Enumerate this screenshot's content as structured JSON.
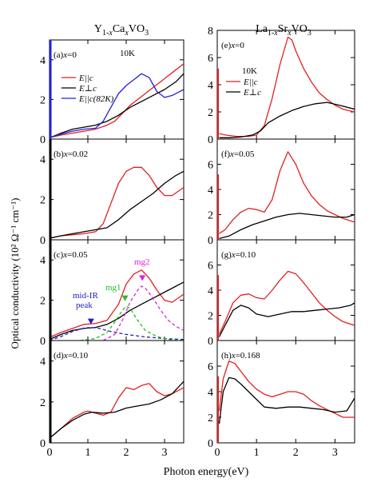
{
  "figure": {
    "ylabel": "Optical conductivity (10² Ω⁻¹ cm⁻¹)",
    "xlabel": "Photon energy(eV)",
    "columns": [
      {
        "title_pre": "Y",
        "title_sub1": "1-",
        "title_subx": "x",
        "title_mid": "Ca",
        "title_sub2": "x",
        "title_post": "VO",
        "title_sub3": "3"
      },
      {
        "title_pre": "La",
        "title_sub1": "1-",
        "title_subx": "x",
        "title_mid": "Sr",
        "title_sub2": "x",
        "title_post": "VO",
        "title_sub3": "3"
      }
    ],
    "legend_E_parallel": "E||c",
    "legend_E_perp": "E⊥c",
    "legend_E_parallel_82K": "E||c(82K)",
    "temperature_label": "10K",
    "annotations": {
      "midir_line1": "mid-IR",
      "midir_line2": "peak",
      "mg1": "mg1",
      "mg2": "mg2"
    }
  },
  "chart_data": [
    {
      "type": "line",
      "panel": "a",
      "label_letter": "(a)",
      "label_x": "x",
      "label_rest": "=0",
      "xlim": [
        0,
        3.5
      ],
      "ylim": [
        0,
        5
      ],
      "xticks": [
        0,
        1,
        2,
        3
      ],
      "yticks": [
        0,
        2,
        4
      ],
      "series": [
        {
          "name": "E||c",
          "color": "#e02020",
          "x": [
            0.05,
            0.3,
            0.6,
            0.9,
            1.2,
            1.5,
            1.7,
            1.9,
            2.1,
            2.3,
            2.5,
            2.7,
            2.9,
            3.1,
            3.3,
            3.5
          ],
          "y": [
            0.1,
            0.2,
            0.3,
            0.4,
            0.5,
            0.7,
            0.9,
            1.3,
            1.7,
            2.0,
            2.3,
            2.6,
            2.9,
            3.2,
            3.5,
            3.8
          ]
        },
        {
          "name": "E⊥c",
          "color": "#000000",
          "x": [
            0.05,
            0.3,
            0.6,
            0.9,
            1.2,
            1.5,
            1.8,
            2.1,
            2.4,
            2.7,
            3.0,
            3.3,
            3.5
          ],
          "y": [
            0.1,
            0.3,
            0.5,
            0.6,
            0.7,
            0.9,
            1.2,
            1.6,
            1.9,
            2.2,
            2.5,
            2.9,
            3.3
          ]
        },
        {
          "name": "E||c(82K)",
          "color": "#2020e0",
          "x": [
            0.05,
            0.3,
            0.6,
            0.9,
            1.2,
            1.4,
            1.6,
            1.8,
            2.0,
            2.2,
            2.4,
            2.6,
            2.8,
            3.0,
            3.2,
            3.5
          ],
          "y": [
            0.1,
            0.25,
            0.4,
            0.5,
            0.55,
            0.9,
            1.6,
            2.3,
            2.7,
            3.0,
            3.3,
            3.1,
            2.4,
            2.1,
            2.2,
            2.5
          ]
        }
      ]
    },
    {
      "type": "line",
      "panel": "b",
      "label_letter": "(b)",
      "label_x": "x",
      "label_rest": "=0.02",
      "xlim": [
        0,
        3.5
      ],
      "ylim": [
        0,
        5
      ],
      "xticks": [
        0,
        1,
        2,
        3
      ],
      "yticks": [
        0,
        2,
        4
      ],
      "series": [
        {
          "name": "E||c",
          "color": "#e02020",
          "x": [
            0.05,
            0.3,
            0.6,
            0.9,
            1.2,
            1.4,
            1.6,
            1.8,
            2.0,
            2.2,
            2.4,
            2.6,
            2.8,
            3.0,
            3.2,
            3.5
          ],
          "y": [
            0.1,
            0.2,
            0.25,
            0.3,
            0.4,
            0.8,
            1.8,
            2.8,
            3.4,
            3.6,
            3.6,
            3.2,
            2.6,
            2.2,
            2.2,
            2.6
          ]
        },
        {
          "name": "E⊥c",
          "color": "#000000",
          "x": [
            0.05,
            0.3,
            0.6,
            0.9,
            1.2,
            1.5,
            1.8,
            2.1,
            2.4,
            2.7,
            3.0,
            3.3,
            3.5
          ],
          "y": [
            0.1,
            0.2,
            0.3,
            0.4,
            0.5,
            0.6,
            1.0,
            1.5,
            1.9,
            2.3,
            2.8,
            3.2,
            3.4
          ]
        }
      ]
    },
    {
      "type": "line",
      "panel": "c",
      "label_letter": "(c)",
      "label_x": "x",
      "label_rest": "=0.05",
      "xlim": [
        0,
        3.5
      ],
      "ylim": [
        0,
        5
      ],
      "xticks": [
        0,
        1,
        2,
        3
      ],
      "yticks": [
        0,
        2,
        4
      ],
      "series": [
        {
          "name": "E||c",
          "color": "#e02020",
          "x": [
            0.05,
            0.3,
            0.6,
            0.9,
            1.2,
            1.5,
            1.8,
            2.0,
            2.2,
            2.4,
            2.6,
            2.8,
            3.0,
            3.2,
            3.5
          ],
          "y": [
            0.2,
            0.4,
            0.6,
            0.8,
            0.85,
            1.0,
            1.8,
            2.8,
            3.3,
            3.5,
            3.1,
            2.5,
            2.0,
            1.9,
            2.3
          ]
        },
        {
          "name": "E⊥c",
          "color": "#000000",
          "x": [
            0.05,
            0.3,
            0.6,
            0.9,
            1.2,
            1.5,
            1.8,
            2.1,
            2.4,
            2.7,
            3.0,
            3.3,
            3.5
          ],
          "y": [
            0.1,
            0.3,
            0.5,
            0.6,
            0.65,
            0.8,
            1.1,
            1.5,
            1.8,
            2.1,
            2.4,
            2.7,
            2.9
          ]
        },
        {
          "name": "mid-IR peak",
          "color": "#2020c0",
          "dashed": true,
          "x": [
            0,
            0.3,
            0.6,
            0.9,
            1.1,
            1.3,
            1.6,
            2.0,
            2.5,
            3.0,
            3.5
          ],
          "y": [
            0,
            0.2,
            0.45,
            0.62,
            0.65,
            0.6,
            0.45,
            0.3,
            0.18,
            0.1,
            0.05
          ]
        },
        {
          "name": "mg1",
          "color": "#20c020",
          "dashed": true,
          "x": [
            0.8,
            1.2,
            1.5,
            1.7,
            1.9,
            2.0,
            2.1,
            2.3,
            2.5,
            2.8,
            3.1,
            3.5
          ],
          "y": [
            0,
            0.1,
            0.4,
            0.9,
            1.5,
            1.7,
            1.6,
            1.0,
            0.5,
            0.2,
            0.05,
            0
          ]
        },
        {
          "name": "mg2",
          "color": "#e020e0",
          "dashed": true,
          "x": [
            1.4,
            1.7,
            1.9,
            2.1,
            2.3,
            2.4,
            2.5,
            2.7,
            2.9,
            3.1,
            3.3,
            3.5
          ],
          "y": [
            0,
            0.3,
            1.0,
            1.9,
            2.5,
            2.7,
            2.6,
            2.1,
            1.5,
            1.0,
            0.7,
            0.5
          ]
        }
      ],
      "markers": [
        {
          "name": "mid-IR peak",
          "x": 1.08,
          "y": 0.85,
          "color": "#2020c0"
        },
        {
          "name": "mg1",
          "x": 1.97,
          "y": 2.0,
          "color": "#20c020"
        },
        {
          "name": "mg2",
          "x": 2.42,
          "y": 3.0,
          "color": "#e020e0"
        }
      ]
    },
    {
      "type": "line",
      "panel": "d",
      "label_letter": "(d)",
      "label_x": "x",
      "label_rest": "=0.10",
      "xlim": [
        0,
        3.5
      ],
      "ylim": [
        0,
        5
      ],
      "xticks": [
        0,
        1,
        2,
        3
      ],
      "yticks": [
        0,
        2,
        4
      ],
      "series": [
        {
          "name": "E||c",
          "color": "#e02020",
          "x": [
            0.05,
            0.3,
            0.6,
            0.9,
            1.0,
            1.2,
            1.4,
            1.6,
            1.8,
            2.0,
            2.2,
            2.4,
            2.6,
            2.8,
            3.0,
            3.2,
            3.5
          ],
          "y": [
            0.3,
            0.7,
            1.2,
            1.5,
            1.55,
            1.45,
            1.35,
            1.5,
            2.2,
            2.7,
            2.6,
            2.8,
            2.9,
            2.5,
            2.3,
            2.4,
            2.7
          ]
        },
        {
          "name": "E⊥c",
          "color": "#000000",
          "x": [
            0.05,
            0.3,
            0.6,
            0.9,
            1.1,
            1.4,
            1.7,
            2.0,
            2.3,
            2.6,
            2.9,
            3.2,
            3.5
          ],
          "y": [
            0.3,
            0.7,
            1.1,
            1.4,
            1.5,
            1.45,
            1.5,
            1.7,
            1.8,
            1.9,
            2.1,
            2.4,
            3.0
          ]
        }
      ]
    },
    {
      "type": "line",
      "panel": "e",
      "label_letter": "(e)",
      "label_x": "x",
      "label_rest": "=0",
      "xlim": [
        0,
        3.5
      ],
      "ylim": [
        0,
        8
      ],
      "xticks": [
        0,
        1,
        2,
        3
      ],
      "yticks": [
        0,
        2,
        4,
        6,
        8
      ],
      "series": [
        {
          "name": "E||c",
          "color": "#e02020",
          "x": [
            0.05,
            0.2,
            0.5,
            0.8,
            1.0,
            1.2,
            1.4,
            1.6,
            1.8,
            1.9,
            2.0,
            2.2,
            2.4,
            2.6,
            2.8,
            3.0,
            3.2,
            3.5
          ],
          "y": [
            0.4,
            0.3,
            0.2,
            0.2,
            0.3,
            1.0,
            3.0,
            5.5,
            7.5,
            7.3,
            6.5,
            5.2,
            4.2,
            3.4,
            2.9,
            2.5,
            2.2,
            2.0
          ]
        },
        {
          "name": "E⊥c",
          "color": "#000000",
          "x": [
            0.05,
            0.3,
            0.6,
            0.9,
            1.1,
            1.3,
            1.6,
            1.9,
            2.2,
            2.5,
            2.8,
            3.1,
            3.5
          ],
          "y": [
            0.1,
            0.1,
            0.15,
            0.3,
            0.6,
            1.2,
            1.7,
            2.1,
            2.4,
            2.6,
            2.7,
            2.5,
            2.2
          ]
        }
      ]
    },
    {
      "type": "line",
      "panel": "f",
      "label_letter": "(f)",
      "label_x": "x",
      "label_rest": "=0.05",
      "xlim": [
        0,
        3.5
      ],
      "ylim": [
        0,
        8
      ],
      "xticks": [
        0,
        1,
        2,
        3
      ],
      "yticks": [
        0,
        2,
        4,
        6
      ],
      "series": [
        {
          "name": "E||c",
          "color": "#e02020",
          "x": [
            0.05,
            0.2,
            0.4,
            0.6,
            0.8,
            1.0,
            1.2,
            1.4,
            1.6,
            1.8,
            2.0,
            2.2,
            2.4,
            2.6,
            2.8,
            3.0,
            3.2,
            3.5
          ],
          "y": [
            0.5,
            0.8,
            1.6,
            2.2,
            2.5,
            2.4,
            2.2,
            3.2,
            5.5,
            7.0,
            6.0,
            4.5,
            3.5,
            2.8,
            2.3,
            2.0,
            1.7,
            1.4
          ]
        },
        {
          "name": "E⊥c",
          "color": "#000000",
          "x": [
            0.05,
            0.3,
            0.6,
            0.9,
            1.2,
            1.5,
            1.8,
            2.1,
            2.4,
            2.7,
            3.0,
            3.3,
            3.5
          ],
          "y": [
            0.1,
            0.3,
            0.8,
            1.2,
            1.5,
            1.8,
            2.0,
            2.1,
            2.0,
            1.9,
            1.8,
            1.8,
            2.0
          ]
        }
      ]
    },
    {
      "type": "line",
      "panel": "g",
      "label_letter": "(g)",
      "label_x": "x",
      "label_rest": "=0.10",
      "xlim": [
        0,
        3.5
      ],
      "ylim": [
        0,
        8
      ],
      "xticks": [
        0,
        1,
        2,
        3
      ],
      "yticks": [
        0,
        2,
        4,
        6
      ],
      "series": [
        {
          "name": "E||c",
          "color": "#e02020",
          "x": [
            0.05,
            0.2,
            0.4,
            0.6,
            0.8,
            1.0,
            1.2,
            1.4,
            1.6,
            1.8,
            2.0,
            2.2,
            2.4,
            2.6,
            2.8,
            3.0,
            3.2,
            3.5
          ],
          "y": [
            0.5,
            1.5,
            3.0,
            3.6,
            3.7,
            3.4,
            3.3,
            4.0,
            4.8,
            5.5,
            5.3,
            4.6,
            3.8,
            3.0,
            2.4,
            1.9,
            1.5,
            1.2
          ]
        },
        {
          "name": "E⊥c",
          "color": "#000000",
          "x": [
            0.05,
            0.2,
            0.4,
            0.6,
            0.8,
            1.0,
            1.3,
            1.6,
            1.9,
            2.2,
            2.5,
            2.8,
            3.1,
            3.4,
            3.5
          ],
          "y": [
            0.3,
            1.2,
            2.4,
            2.8,
            2.6,
            2.1,
            1.9,
            2.1,
            2.3,
            2.3,
            2.4,
            2.5,
            2.6,
            2.8,
            3.0
          ]
        }
      ]
    },
    {
      "type": "line",
      "panel": "h",
      "label_letter": "(h)",
      "label_x": "x",
      "label_rest": "=0.168",
      "xlim": [
        0,
        3.5
      ],
      "ylim": [
        0,
        8
      ],
      "xticks": [
        0,
        1,
        2,
        3
      ],
      "yticks": [
        0,
        2,
        4,
        6
      ],
      "series": [
        {
          "name": "E||c",
          "color": "#e02020",
          "x": [
            0.05,
            0.15,
            0.3,
            0.45,
            0.6,
            0.8,
            1.0,
            1.2,
            1.4,
            1.6,
            1.8,
            2.0,
            2.2,
            2.4,
            2.6,
            2.8,
            3.0,
            3.2,
            3.5
          ],
          "y": [
            2.5,
            5.0,
            6.4,
            6.2,
            5.6,
            4.8,
            4.2,
            3.8,
            3.6,
            3.8,
            4.0,
            4.0,
            3.8,
            3.3,
            2.9,
            2.6,
            2.3,
            2.0,
            2.0
          ]
        },
        {
          "name": "E⊥c",
          "color": "#000000",
          "x": [
            0.05,
            0.15,
            0.3,
            0.45,
            0.6,
            0.8,
            1.0,
            1.2,
            1.5,
            1.8,
            2.1,
            2.4,
            2.7,
            3.0,
            3.3,
            3.5
          ],
          "y": [
            1.5,
            4.0,
            5.1,
            5.0,
            4.6,
            4.0,
            3.4,
            2.8,
            2.7,
            2.8,
            2.8,
            2.7,
            2.6,
            2.4,
            2.5,
            3.5
          ]
        }
      ]
    }
  ]
}
